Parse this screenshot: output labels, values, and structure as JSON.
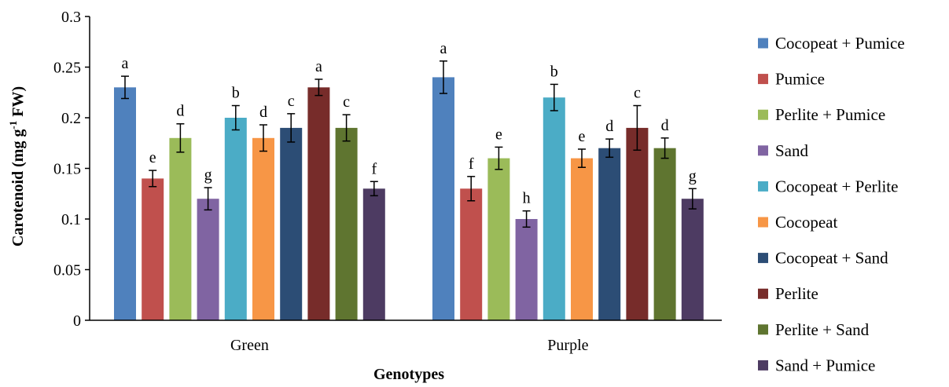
{
  "chart_data": {
    "type": "bar",
    "title": "",
    "xlabel": "Genotypes",
    "ylabel_main": "Carotenoid (mg g",
    "ylabel_sup": "-1",
    "ylabel_tail": " FW)",
    "ylim": [
      0,
      0.3
    ],
    "yticks": [
      0,
      0.05,
      0.1,
      0.15,
      0.2,
      0.25,
      0.3
    ],
    "ytick_labels": [
      "0",
      "0.05",
      "0.1",
      "0.15",
      "0.2",
      "0.25",
      "0.3"
    ],
    "grid": false,
    "legend_position": "right",
    "categories": [
      "Green",
      "Purple"
    ],
    "series": [
      {
        "name": "Cocopeat + Pumice",
        "color": "#4F81BD",
        "values": [
          0.23,
          0.24
        ],
        "errors": [
          0.011,
          0.016
        ],
        "letters": [
          "a",
          "a"
        ]
      },
      {
        "name": "Pumice",
        "color": "#C0504D",
        "values": [
          0.14,
          0.13
        ],
        "errors": [
          0.008,
          0.012
        ],
        "letters": [
          "e",
          "f"
        ]
      },
      {
        "name": "Perlite + Pumice",
        "color": "#9BBB59",
        "values": [
          0.18,
          0.16
        ],
        "errors": [
          0.014,
          0.011
        ],
        "letters": [
          "d",
          "e"
        ]
      },
      {
        "name": "Sand",
        "color": "#8064A2",
        "values": [
          0.12,
          0.1
        ],
        "errors": [
          0.011,
          0.008
        ],
        "letters": [
          "g",
          "h"
        ]
      },
      {
        "name": "Cocopeat + Perlite",
        "color": "#4BACC6",
        "values": [
          0.2,
          0.22
        ],
        "errors": [
          0.012,
          0.013
        ],
        "letters": [
          "b",
          "b"
        ]
      },
      {
        "name": "Cocopeat",
        "color": "#F79646",
        "values": [
          0.18,
          0.16
        ],
        "errors": [
          0.013,
          0.009
        ],
        "letters": [
          "d",
          "e"
        ]
      },
      {
        "name": "Cocopeat + Sand",
        "color": "#2C4D75",
        "values": [
          0.19,
          0.17
        ],
        "errors": [
          0.014,
          0.009
        ],
        "letters": [
          "c",
          "d"
        ]
      },
      {
        "name": "Perlite",
        "color": "#772C2A",
        "values": [
          0.23,
          0.19
        ],
        "errors": [
          0.008,
          0.022
        ],
        "letters": [
          "a",
          "c"
        ]
      },
      {
        "name": "Perlite + Sand",
        "color": "#5F7530",
        "values": [
          0.19,
          0.17
        ],
        "errors": [
          0.013,
          0.01
        ],
        "letters": [
          "c",
          "d"
        ]
      },
      {
        "name": "Sand + Pumice",
        "color": "#4D3B62",
        "values": [
          0.13,
          0.12
        ],
        "errors": [
          0.007,
          0.01
        ],
        "letters": [
          "f",
          "g"
        ]
      }
    ]
  }
}
